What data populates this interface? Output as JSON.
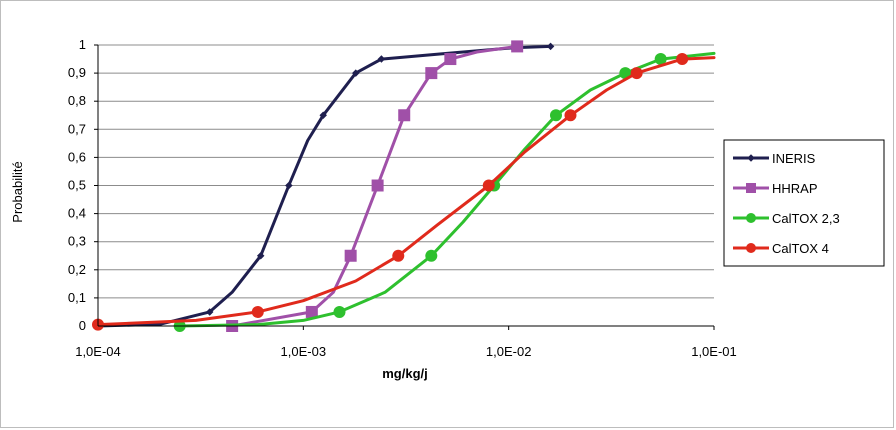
{
  "chart_data": {
    "type": "line",
    "title": "",
    "xlabel": "mg/kg/j",
    "ylabel": "Probabilité",
    "x_scale": "log",
    "xlim": [
      0.0001,
      0.1
    ],
    "ylim": [
      0,
      1
    ],
    "grid": true,
    "legend_position": "right",
    "x_ticks": [
      "1,0E-04",
      "1,0E-03",
      "1,0E-02",
      "1,0E-01"
    ],
    "y_ticks": [
      "0",
      "0,1",
      "0,2",
      "0,3",
      "0,4",
      "0,5",
      "0,6",
      "0,7",
      "0,8",
      "0,9",
      "1"
    ],
    "series": [
      {
        "name": "INERIS",
        "color": "#1f1f4f",
        "marker": "diamond",
        "points": [
          [
            0.0001,
            0.0
          ],
          [
            0.00035,
            0.05
          ],
          [
            0.00062,
            0.25
          ],
          [
            0.00085,
            0.5
          ],
          [
            0.00125,
            0.75
          ],
          [
            0.0018,
            0.9
          ],
          [
            0.0024,
            0.95
          ],
          [
            0.0105,
            0.99
          ],
          [
            0.016,
            0.995
          ]
        ],
        "curve": [
          [
            0.0001,
            0.0
          ],
          [
            0.0002,
            0.006
          ],
          [
            0.00035,
            0.05
          ],
          [
            0.00045,
            0.12
          ],
          [
            0.00062,
            0.25
          ],
          [
            0.00085,
            0.5
          ],
          [
            0.00105,
            0.66
          ],
          [
            0.00125,
            0.75
          ],
          [
            0.0018,
            0.9
          ],
          [
            0.0024,
            0.95
          ],
          [
            0.005,
            0.97
          ],
          [
            0.0105,
            0.99
          ],
          [
            0.016,
            0.995
          ]
        ]
      },
      {
        "name": "HHRAP",
        "color": "#a050a8",
        "marker": "square",
        "points": [
          [
            0.00045,
            0.0
          ],
          [
            0.0011,
            0.05
          ],
          [
            0.0017,
            0.25
          ],
          [
            0.0023,
            0.5
          ],
          [
            0.0031,
            0.75
          ],
          [
            0.0042,
            0.9
          ],
          [
            0.0052,
            0.95
          ],
          [
            0.011,
            0.995
          ]
        ],
        "curve": [
          [
            0.00045,
            0.0
          ],
          [
            0.0011,
            0.05
          ],
          [
            0.0014,
            0.12
          ],
          [
            0.0017,
            0.25
          ],
          [
            0.0023,
            0.5
          ],
          [
            0.0031,
            0.75
          ],
          [
            0.0042,
            0.9
          ],
          [
            0.0052,
            0.95
          ],
          [
            0.007,
            0.975
          ],
          [
            0.011,
            0.995
          ]
        ]
      },
      {
        "name": "CalTOX 2,3",
        "color": "#2ec02e",
        "marker": "circle",
        "points": [
          [
            0.00025,
            0.0
          ],
          [
            0.0015,
            0.05
          ],
          [
            0.0042,
            0.25
          ],
          [
            0.0085,
            0.5
          ],
          [
            0.017,
            0.75
          ],
          [
            0.037,
            0.9
          ],
          [
            0.055,
            0.95
          ]
        ],
        "curve": [
          [
            0.00025,
            0.0
          ],
          [
            0.0006,
            0.005
          ],
          [
            0.001,
            0.02
          ],
          [
            0.0015,
            0.05
          ],
          [
            0.0025,
            0.12
          ],
          [
            0.0042,
            0.25
          ],
          [
            0.006,
            0.37
          ],
          [
            0.0085,
            0.5
          ],
          [
            0.012,
            0.63
          ],
          [
            0.017,
            0.75
          ],
          [
            0.025,
            0.84
          ],
          [
            0.037,
            0.9
          ],
          [
            0.055,
            0.95
          ],
          [
            0.1,
            0.97
          ]
        ]
      },
      {
        "name": "CalTOX 4",
        "color": "#e02a1c",
        "marker": "circle",
        "points": [
          [
            0.0001,
            0.005
          ],
          [
            0.0006,
            0.05
          ],
          [
            0.0029,
            0.25
          ],
          [
            0.008,
            0.5
          ],
          [
            0.02,
            0.75
          ],
          [
            0.042,
            0.9
          ],
          [
            0.07,
            0.95
          ]
        ],
        "curve": [
          [
            0.0001,
            0.005
          ],
          [
            0.0003,
            0.02
          ],
          [
            0.0006,
            0.05
          ],
          [
            0.001,
            0.09
          ],
          [
            0.0018,
            0.16
          ],
          [
            0.0029,
            0.25
          ],
          [
            0.0045,
            0.36
          ],
          [
            0.008,
            0.5
          ],
          [
            0.012,
            0.62
          ],
          [
            0.02,
            0.75
          ],
          [
            0.03,
            0.84
          ],
          [
            0.042,
            0.9
          ],
          [
            0.07,
            0.95
          ],
          [
            0.1,
            0.955
          ]
        ]
      }
    ]
  }
}
